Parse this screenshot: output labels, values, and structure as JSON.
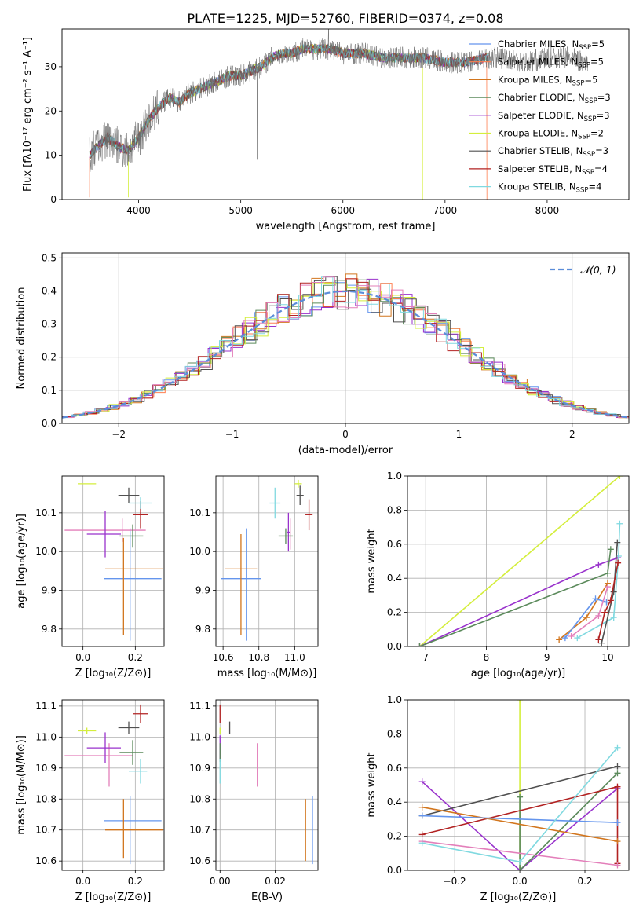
{
  "title": "PLATE=1225, MJD=52760, FIBERID=0374, z=0.08",
  "colors": {
    "chabrier_miles": "#6495ed",
    "salpeter_miles": "#ff7f50",
    "kroupa_miles": "#d2761e",
    "chabrier_elodie": "#5b8a5b",
    "salpeter_elodie": "#9932cc",
    "kroupa_elodie": "#d4ee3c",
    "chabrier_stelib": "#505050",
    "salpeter_stelib": "#b22222",
    "kroupa_stelib": "#80d9e0",
    "pink": "#e37fba",
    "grid": "#b0b0b0",
    "normal_curve": "#5b8dd9"
  },
  "legend_spectrum": [
    {
      "label": "Chabrier MILES, N",
      "sub": "SSP",
      "tail": "=5",
      "color_key": "chabrier_miles"
    },
    {
      "label": "Salpeter MILES, N",
      "sub": "SSP",
      "tail": "=5",
      "color_key": "salpeter_miles"
    },
    {
      "label": "Kroupa MILES, N",
      "sub": "SSP",
      "tail": "=5",
      "color_key": "kroupa_miles"
    },
    {
      "label": "Chabrier ELODIE, N",
      "sub": "SSP",
      "tail": "=3",
      "color_key": "chabrier_elodie"
    },
    {
      "label": "Salpeter ELODIE, N",
      "sub": "SSP",
      "tail": "=3",
      "color_key": "salpeter_elodie"
    },
    {
      "label": "Kroupa ELODIE, N",
      "sub": "SSP",
      "tail": "=2",
      "color_key": "kroupa_elodie"
    },
    {
      "label": "Chabrier STELIB, N",
      "sub": "SSP",
      "tail": "=3",
      "color_key": "chabrier_stelib"
    },
    {
      "label": "Salpeter STELIB, N",
      "sub": "SSP",
      "tail": "=4",
      "color_key": "salpeter_stelib"
    },
    {
      "label": "Kroupa STELIB, N",
      "sub": "SSP",
      "tail": "=4",
      "color_key": "kroupa_stelib"
    }
  ],
  "chart_data": [
    {
      "id": "spectrum",
      "type": "line",
      "xlabel": "wavelength [Angstrom, rest frame]",
      "ylabel": "Flux [fλ10⁻¹⁷ erg cm⁻² s⁻¹ A⁻¹]",
      "xlim": [
        3250,
        8800
      ],
      "ylim": [
        0,
        38.5
      ],
      "xticks": [
        4000,
        5000,
        6000,
        7000,
        8000
      ],
      "yticks": [
        0,
        10,
        20,
        30
      ],
      "grid": false,
      "legend": "upper right",
      "continuum": {
        "x": [
          3520,
          3600,
          3700,
          3800,
          3900,
          4000,
          4100,
          4200,
          4300,
          4400,
          4500,
          4600,
          4700,
          4800,
          4900,
          5000,
          5100,
          5200,
          5300,
          5400,
          5500,
          5600,
          5700,
          5800,
          5900,
          6000,
          6200,
          6400,
          6600,
          6800,
          7000,
          7200,
          7400,
          7600,
          7800,
          8000,
          8200,
          8400
        ],
        "y": [
          10,
          12,
          14,
          12,
          11,
          14,
          18,
          21,
          23,
          22,
          24,
          25,
          26,
          27,
          28,
          28,
          29,
          30,
          32,
          33,
          33,
          34,
          34,
          34,
          34,
          33,
          33,
          32,
          32,
          32,
          31,
          31,
          32,
          32,
          31,
          32,
          32,
          31
        ]
      },
      "drops": [
        {
          "color_key": "salpeter_miles",
          "start": 3520,
          "end": 7410
        },
        {
          "color_key": "kroupa_elodie",
          "start": 3900,
          "end": 6780
        }
      ],
      "spikes": [
        {
          "x": 5160,
          "y": 9
        },
        {
          "x": 5860,
          "y": 40
        }
      ]
    },
    {
      "id": "residuals",
      "type": "step",
      "xlabel": "(data-model)/error",
      "ylabel": "Normed distribution",
      "xlim": [
        -2.5,
        2.5
      ],
      "ylim": [
        0,
        0.515
      ],
      "xticks": [
        -2,
        -1,
        0,
        1,
        2
      ],
      "yticks": [
        0.0,
        0.1,
        0.2,
        0.3,
        0.4,
        0.5
      ],
      "grid": true,
      "legend": "upper right",
      "legend_label": "𝒩(0, 1)",
      "bin_width": 0.1
    },
    {
      "id": "age_vs_Z",
      "type": "errorbar",
      "xlabel": "Z [log₁₀(Z/Z⊙)]",
      "ylabel": "age  [log₁₀(age/yr)]",
      "xlim": [
        -0.08,
        0.31
      ],
      "ylim": [
        9.755,
        10.195
      ],
      "xticks": [
        0.0,
        0.2
      ],
      "yticks": [
        9.8,
        9.9,
        10.0,
        10.1
      ],
      "grid": true,
      "points": [
        {
          "color_key": "chabrier_miles",
          "x": 0.18,
          "xerr": [
            0.1,
            0.12
          ],
          "y": 9.93,
          "yerr": [
            0.16,
            0.13
          ]
        },
        {
          "color_key": "kroupa_miles",
          "x": 0.155,
          "xerr": [
            0.07,
            0.15
          ],
          "y": 9.955,
          "yerr": [
            0.17,
            0.08
          ]
        },
        {
          "color_key": "pink",
          "x": 0.15,
          "xerr": [
            0.22,
            0.09
          ],
          "y": 10.055,
          "yerr": [
            0.03,
            0.03
          ]
        },
        {
          "color_key": "salpeter_elodie",
          "x": 0.085,
          "xerr": [
            0.07,
            0.06
          ],
          "y": 10.045,
          "yerr": [
            0.06,
            0.06
          ]
        },
        {
          "color_key": "chabrier_elodie",
          "x": 0.19,
          "xerr": [
            0.05,
            0.04
          ],
          "y": 10.04,
          "yerr": [
            0.03,
            0.03
          ]
        },
        {
          "color_key": "kroupa_elodie",
          "x": 0.015,
          "xerr": [
            0.035,
            0.035
          ],
          "y": 10.175,
          "yerr": [
            0.0,
            0.0
          ]
        },
        {
          "color_key": "chabrier_stelib",
          "x": 0.175,
          "xerr": [
            0.04,
            0.04
          ],
          "y": 10.145,
          "yerr": [
            0.02,
            0.02
          ]
        },
        {
          "color_key": "salpeter_stelib",
          "x": 0.22,
          "xerr": [
            0.03,
            0.03
          ],
          "y": 10.095,
          "yerr": [
            0.035,
            0.035
          ]
        },
        {
          "color_key": "kroupa_stelib",
          "x": 0.22,
          "xerr": [
            0.045,
            0.045
          ],
          "y": 10.125,
          "yerr": [
            0.015,
            0.015
          ]
        }
      ]
    },
    {
      "id": "age_vs_mass",
      "type": "errorbar",
      "xlabel": "mass [log₁₀(M/M⊙)]",
      "ylabel": "",
      "xlim": [
        10.56,
        11.13
      ],
      "ylim": [
        9.755,
        10.195
      ],
      "xticks": [
        10.6,
        10.8,
        11.0
      ],
      "yticks": [
        9.8,
        9.9,
        10.0,
        10.1
      ],
      "grid": true,
      "points": [
        {
          "color_key": "chabrier_miles",
          "x": 10.73,
          "xerr": [
            0.14,
            0.08
          ],
          "y": 9.93,
          "yerr": [
            0.16,
            0.13
          ]
        },
        {
          "color_key": "kroupa_miles",
          "x": 10.7,
          "xerr": [
            0.09,
            0.09
          ],
          "y": 9.955,
          "yerr": [
            0.17,
            0.09
          ]
        },
        {
          "color_key": "pink",
          "x": 10.975,
          "xerr": [
            0.0,
            0.0
          ],
          "y": 10.045,
          "yerr": [
            0.04,
            0.04
          ]
        },
        {
          "color_key": "salpeter_elodie",
          "x": 10.965,
          "xerr": [
            0.01,
            0.01
          ],
          "y": 10.05,
          "yerr": [
            0.05,
            0.05
          ]
        },
        {
          "color_key": "chabrier_elodie",
          "x": 10.95,
          "xerr": [
            0.04,
            0.04
          ],
          "y": 10.04,
          "yerr": [
            0.02,
            0.02
          ]
        },
        {
          "color_key": "kroupa_elodie",
          "x": 11.02,
          "xerr": [
            0.02,
            0.02
          ],
          "y": 10.175,
          "yerr": [
            0.01,
            0.01
          ]
        },
        {
          "color_key": "chabrier_stelib",
          "x": 11.03,
          "xerr": [
            0.02,
            0.02
          ],
          "y": 10.145,
          "yerr": [
            0.025,
            0.025
          ]
        },
        {
          "color_key": "salpeter_stelib",
          "x": 11.08,
          "xerr": [
            0.02,
            0.02
          ],
          "y": 10.095,
          "yerr": [
            0.04,
            0.04
          ]
        },
        {
          "color_key": "kroupa_stelib",
          "x": 10.89,
          "xerr": [
            0.03,
            0.03
          ],
          "y": 10.125,
          "yerr": [
            0.04,
            0.04
          ]
        }
      ]
    },
    {
      "id": "weight_vs_age",
      "type": "line",
      "xlabel": "age  [log₁₀(age/yr)]",
      "ylabel": "mass weight",
      "xlim": [
        6.7,
        10.35
      ],
      "ylim": [
        0,
        1
      ],
      "xticks": [
        7,
        8,
        9,
        10
      ],
      "yticks": [
        0.0,
        0.2,
        0.4,
        0.6,
        0.8,
        1.0
      ],
      "grid": true,
      "series": [
        {
          "color_key": "kroupa_elodie",
          "x": [
            6.9,
            10.2
          ],
          "y": [
            0.0,
            1.0
          ]
        },
        {
          "color_key": "salpeter_elodie",
          "x": [
            6.9,
            9.85,
            10.17
          ],
          "y": [
            0.0,
            0.48,
            0.52
          ]
        },
        {
          "color_key": "chabrier_elodie",
          "x": [
            6.9,
            10.0,
            10.05
          ],
          "y": [
            0.0,
            0.43,
            0.57
          ]
        },
        {
          "color_key": "kroupa_miles",
          "x": [
            9.2,
            9.65,
            10.0
          ],
          "y": [
            0.04,
            0.17,
            0.37
          ]
        },
        {
          "color_key": "chabrier_miles",
          "x": [
            9.3,
            9.8,
            9.98
          ],
          "y": [
            0.05,
            0.28,
            0.26
          ]
        },
        {
          "color_key": "pink",
          "x": [
            9.4,
            9.85,
            10.0
          ],
          "y": [
            0.06,
            0.18,
            0.35
          ]
        },
        {
          "color_key": "kroupa_stelib",
          "x": [
            9.5,
            10.1,
            10.18,
            10.2
          ],
          "y": [
            0.05,
            0.17,
            0.53,
            0.72
          ]
        },
        {
          "color_key": "chabrier_stelib",
          "x": [
            9.9,
            10.1,
            10.16
          ],
          "y": [
            0.02,
            0.32,
            0.61
          ]
        },
        {
          "color_key": "salpeter_stelib",
          "x": [
            9.85,
            9.95,
            10.05,
            10.17
          ],
          "y": [
            0.04,
            0.2,
            0.27,
            0.49
          ]
        }
      ]
    },
    {
      "id": "mass_vs_Z",
      "type": "errorbar",
      "xlabel": "Z [log₁₀(Z/Z⊙)]",
      "ylabel": "mass [log₁₀(M/M⊙)]",
      "xlim": [
        -0.08,
        0.31
      ],
      "ylim": [
        10.57,
        11.12
      ],
      "xticks": [
        0.0,
        0.2
      ],
      "yticks": [
        10.6,
        10.7,
        10.8,
        10.9,
        11.0,
        11.1
      ],
      "grid": true,
      "points": [
        {
          "color_key": "chabrier_miles",
          "x": 0.18,
          "xerr": [
            0.1,
            0.12
          ],
          "y": 10.73,
          "yerr": [
            0.14,
            0.08
          ]
        },
        {
          "color_key": "kroupa_miles",
          "x": 0.155,
          "xerr": [
            0.07,
            0.15
          ],
          "y": 10.7,
          "yerr": [
            0.09,
            0.1
          ]
        },
        {
          "color_key": "pink",
          "x": 0.1,
          "xerr": [
            0.17,
            0.09
          ],
          "y": 10.94,
          "yerr": [
            0.1,
            0.04
          ]
        },
        {
          "color_key": "salpeter_elodie",
          "x": 0.085,
          "xerr": [
            0.07,
            0.06
          ],
          "y": 10.965,
          "yerr": [
            0.05,
            0.05
          ]
        },
        {
          "color_key": "chabrier_elodie",
          "x": 0.19,
          "xerr": [
            0.05,
            0.04
          ],
          "y": 10.95,
          "yerr": [
            0.04,
            0.04
          ]
        },
        {
          "color_key": "kroupa_elodie",
          "x": 0.015,
          "xerr": [
            0.035,
            0.035
          ],
          "y": 11.02,
          "yerr": [
            0.01,
            0.01
          ]
        },
        {
          "color_key": "chabrier_stelib",
          "x": 0.175,
          "xerr": [
            0.04,
            0.04
          ],
          "y": 11.03,
          "yerr": [
            0.02,
            0.02
          ]
        },
        {
          "color_key": "salpeter_stelib",
          "x": 0.22,
          "xerr": [
            0.03,
            0.03
          ],
          "y": 11.075,
          "yerr": [
            0.03,
            0.03
          ]
        },
        {
          "color_key": "kroupa_stelib",
          "x": 0.22,
          "xerr": [
            0.045,
            0.025
          ],
          "y": 10.89,
          "yerr": [
            0.04,
            0.04
          ]
        }
      ]
    },
    {
      "id": "mass_vs_ebv",
      "type": "errorbar",
      "xlabel": "E(B-V)",
      "ylabel": "",
      "xlim": [
        -0.0015,
        0.0355
      ],
      "ylim": [
        10.57,
        11.12
      ],
      "xticks": [
        0.0,
        0.02
      ],
      "yticks": [
        10.6,
        10.7,
        10.8,
        10.9,
        11.0,
        11.1
      ],
      "grid": true,
      "points": [
        {
          "color_key": "chabrier_miles",
          "x": 0.0335,
          "xerr": [
            0,
            0
          ],
          "y": 10.7,
          "yerr": [
            0.11,
            0.11
          ]
        },
        {
          "color_key": "kroupa_miles",
          "x": 0.031,
          "xerr": [
            0,
            0
          ],
          "y": 10.7,
          "yerr": [
            0.1,
            0.1
          ]
        },
        {
          "color_key": "pink",
          "x": 0.0135,
          "xerr": [
            0,
            0
          ],
          "y": 10.91,
          "yerr": [
            0.07,
            0.07
          ]
        },
        {
          "color_key": "salpeter_elodie",
          "x": 0.0,
          "xerr": [
            0,
            0
          ],
          "y": 10.965,
          "yerr": [
            0.04,
            0.04
          ]
        },
        {
          "color_key": "chabrier_elodie",
          "x": 0.0,
          "xerr": [
            0,
            0
          ],
          "y": 10.95,
          "yerr": [
            0.03,
            0.03
          ]
        },
        {
          "color_key": "kroupa_elodie",
          "x": 0.0,
          "xerr": [
            0,
            0
          ],
          "y": 11.02,
          "yerr": [
            0.01,
            0.01
          ]
        },
        {
          "color_key": "chabrier_stelib",
          "x": 0.0035,
          "xerr": [
            0,
            0
          ],
          "y": 11.03,
          "yerr": [
            0.02,
            0.02
          ]
        },
        {
          "color_key": "salpeter_stelib",
          "x": 0.0,
          "xerr": [
            0,
            0
          ],
          "y": 11.075,
          "yerr": [
            0.03,
            0.03
          ]
        },
        {
          "color_key": "kroupa_stelib",
          "x": 0.0,
          "xerr": [
            0,
            0
          ],
          "y": 10.89,
          "yerr": [
            0.04,
            0.04
          ]
        }
      ]
    },
    {
      "id": "weight_vs_Z",
      "type": "line",
      "xlabel": "Z [log₁₀(Z/Z⊙)]",
      "ylabel": "mass weight",
      "xlim": [
        -0.345,
        0.335
      ],
      "ylim": [
        0,
        1
      ],
      "xticks": [
        -0.2,
        0.0,
        0.2
      ],
      "yticks": [
        0.0,
        0.2,
        0.4,
        0.6,
        0.8,
        1.0
      ],
      "grid": true,
      "series": [
        {
          "color_key": "kroupa_elodie",
          "x": [
            0.0,
            0.0
          ],
          "y": [
            0.0,
            1.0
          ]
        },
        {
          "color_key": "salpeter_elodie",
          "x": [
            -0.3,
            0.0,
            0.3
          ],
          "y": [
            0.52,
            0.0,
            0.48
          ]
        },
        {
          "color_key": "chabrier_elodie",
          "x": [
            0.0,
            0.0,
            0.3
          ],
          "y": [
            0.43,
            0.0,
            0.57
          ]
        },
        {
          "color_key": "chabrier_stelib",
          "x": [
            -0.3,
            0.3
          ],
          "y": [
            0.32,
            0.61
          ]
        },
        {
          "color_key": "salpeter_stelib",
          "x": [
            -0.3,
            0.3,
            0.3
          ],
          "y": [
            0.21,
            0.49,
            0.04
          ]
        },
        {
          "color_key": "kroupa_miles",
          "x": [
            -0.3,
            0.3
          ],
          "y": [
            0.37,
            0.17
          ]
        },
        {
          "color_key": "chabrier_miles",
          "x": [
            -0.3,
            0.3
          ],
          "y": [
            0.32,
            0.28
          ]
        },
        {
          "color_key": "pink",
          "x": [
            -0.3,
            0.3
          ],
          "y": [
            0.17,
            0.03
          ]
        },
        {
          "color_key": "kroupa_stelib",
          "x": [
            -0.3,
            0.0,
            0.3
          ],
          "y": [
            0.16,
            0.05,
            0.72
          ]
        }
      ]
    }
  ]
}
